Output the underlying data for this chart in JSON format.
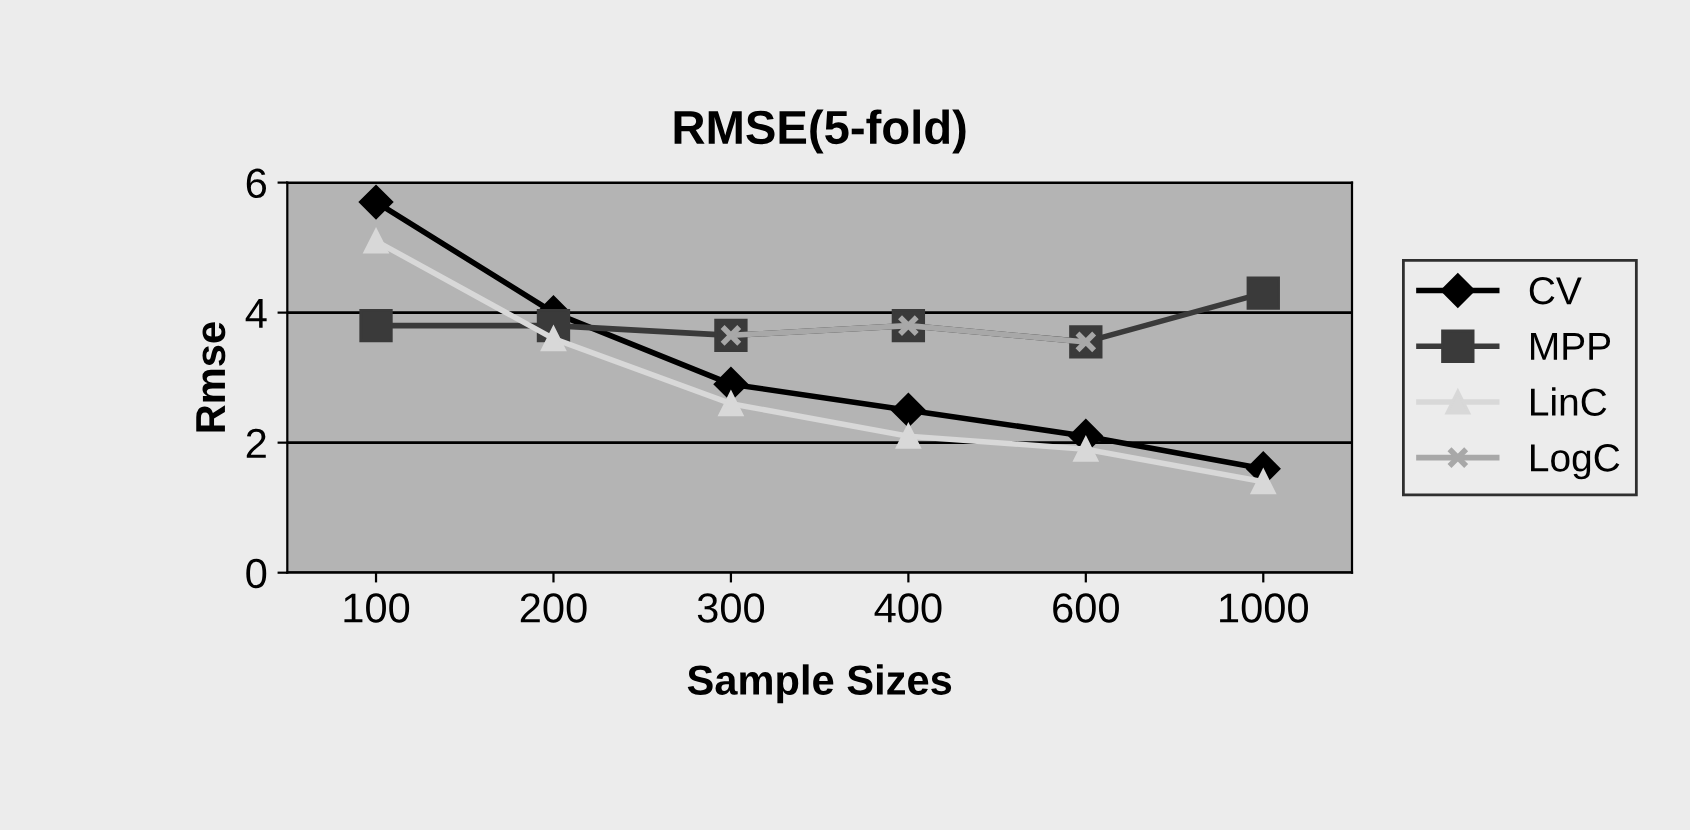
{
  "chart_data": {
    "type": "line",
    "title": "RMSE(5-fold)",
    "xlabel": "Sample Sizes",
    "ylabel": "Rmse",
    "categories": [
      "100",
      "200",
      "300",
      "400",
      "600",
      "1000"
    ],
    "series": [
      {
        "name": "CV",
        "color": "#000000",
        "marker": "diamond",
        "values": [
          5.7,
          4.0,
          2.9,
          2.5,
          2.1,
          1.6
        ]
      },
      {
        "name": "MPP",
        "color": "#3a3a3a",
        "marker": "square",
        "values": [
          3.8,
          3.8,
          3.65,
          3.8,
          3.55,
          4.3
        ]
      },
      {
        "name": "LinC",
        "color": "#d8d8d8",
        "marker": "triangle",
        "values": [
          5.1,
          3.6,
          2.6,
          2.1,
          1.9,
          1.4
        ]
      },
      {
        "name": "LogC",
        "color": "#a8a8a8",
        "marker": "cross",
        "values": [
          null,
          null,
          3.65,
          3.8,
          3.55,
          null
        ]
      }
    ],
    "ylim": [
      0,
      6
    ],
    "yticks": [
      0,
      2,
      4,
      6
    ],
    "grid": "y",
    "legend": "right"
  }
}
